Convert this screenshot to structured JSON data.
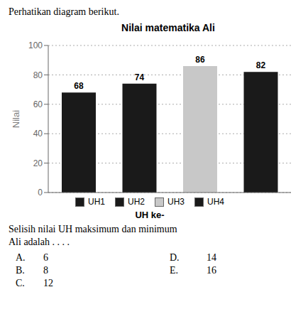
{
  "chart_data": {
    "type": "bar",
    "title": "Nilai matematika Ali",
    "categories": [
      "UH1",
      "UH2",
      "UH3",
      "UH4"
    ],
    "values": [
      68,
      74,
      86,
      82
    ],
    "colors": [
      "#1a1a1a",
      "#1a1a1a",
      "#c8c8c8",
      "#1a1a1a"
    ],
    "ylabel": "Nilai",
    "xlabel": "UH ke-",
    "ylim": [
      0,
      100
    ],
    "yticks": [
      0,
      20,
      40,
      60,
      80,
      100
    ],
    "grid": true,
    "data_labels": true,
    "tick_labels": "y",
    "legend": "bottom",
    "annotations": [
      "Perhatikan diagram berikut.",
      "Selisih nilai UH maksimum dan minimum",
      "Ali adalah . . . ."
    ],
    "choices": [
      [
        "A.",
        "6",
        "D.",
        "14"
      ],
      [
        "B.",
        "8",
        "E.",
        "16"
      ],
      [
        "C.",
        "12"
      ]
    ]
  }
}
